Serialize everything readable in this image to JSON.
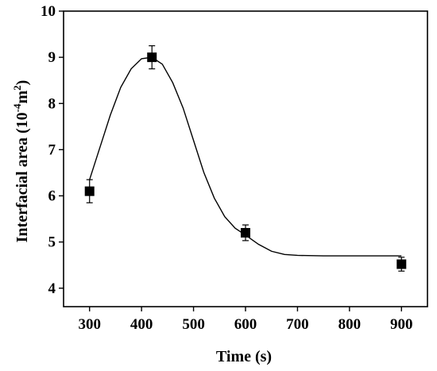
{
  "chart_data": {
    "type": "scatter",
    "title": "",
    "xlabel": "Time (s)",
    "ylabel": {
      "prefix": "Interfacial area (10",
      "exp": "-4",
      "unit": "m",
      "unit_exp": "2",
      "suffix": ")"
    },
    "xlim": [
      250,
      950
    ],
    "ylim": [
      3.6,
      10
    ],
    "x_ticks": [
      "300",
      "400",
      "500",
      "600",
      "700",
      "800",
      "900"
    ],
    "y_ticks": [
      "4",
      "5",
      "6",
      "7",
      "8",
      "9",
      "10"
    ],
    "grid": false,
    "series": [
      {
        "points": [
          {
            "x": 300,
            "y": 6.1,
            "err": 0.25
          },
          {
            "x": 420,
            "y": 9.0,
            "err": 0.25
          },
          {
            "x": 600,
            "y": 5.2,
            "err": 0.17
          },
          {
            "x": 900,
            "y": 4.52,
            "err": 0.15
          }
        ]
      }
    ],
    "fit_curve": {
      "points": [
        [
          300,
          6.35
        ],
        [
          320,
          7.05
        ],
        [
          340,
          7.75
        ],
        [
          360,
          8.35
        ],
        [
          380,
          8.75
        ],
        [
          400,
          8.97
        ],
        [
          420,
          9.0
        ],
        [
          440,
          8.85
        ],
        [
          460,
          8.45
        ],
        [
          480,
          7.9
        ],
        [
          500,
          7.2
        ],
        [
          520,
          6.5
        ],
        [
          540,
          5.95
        ],
        [
          560,
          5.55
        ],
        [
          580,
          5.3
        ],
        [
          600,
          5.15
        ],
        [
          625,
          4.95
        ],
        [
          650,
          4.8
        ],
        [
          675,
          4.73
        ],
        [
          700,
          4.71
        ],
        [
          750,
          4.7
        ],
        [
          800,
          4.7
        ],
        [
          850,
          4.7
        ],
        [
          900,
          4.7
        ]
      ]
    }
  }
}
